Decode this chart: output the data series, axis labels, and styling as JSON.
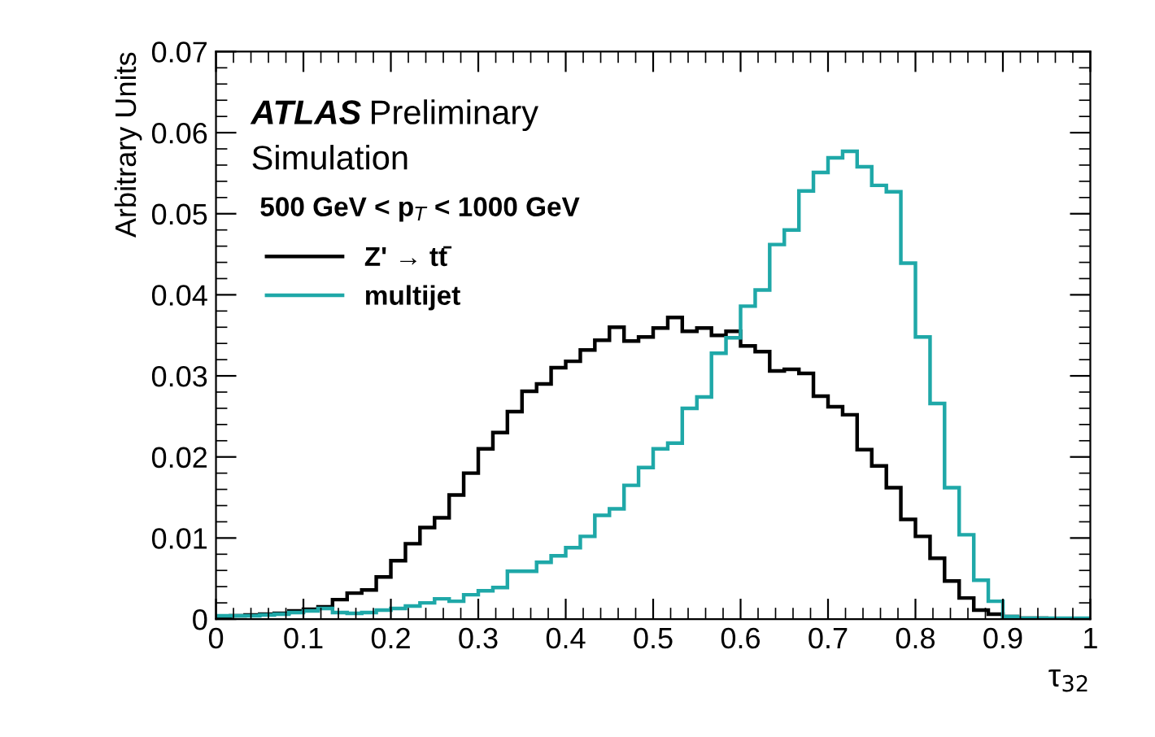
{
  "chart_data": {
    "type": "histogram",
    "xlabel": "τ$_{32}$",
    "ylabel": "Arbitrary Units",
    "annotations": [
      "ATLAS",
      "Preliminary",
      "Simulation",
      "500 GeV < p$_{T}$ < 1000 GeV"
    ],
    "bins": [
      0,
      0.0167,
      0.0333,
      0.05,
      0.0667,
      0.0833,
      0.1,
      0.1167,
      0.1333,
      0.15,
      0.1667,
      0.1833,
      0.2,
      0.2167,
      0.2333,
      0.25,
      0.2667,
      0.2833,
      0.3,
      0.3167,
      0.3333,
      0.35,
      0.3667,
      0.3833,
      0.4,
      0.4167,
      0.4333,
      0.45,
      0.4667,
      0.4833,
      0.5,
      0.5167,
      0.5333,
      0.55,
      0.5667,
      0.5833,
      0.6,
      0.6167,
      0.6333,
      0.65,
      0.6667,
      0.6833,
      0.7,
      0.7167,
      0.7333,
      0.75,
      0.7667,
      0.7833,
      0.8,
      0.8167,
      0.8333,
      0.85,
      0.8667,
      0.8833,
      0.9,
      0.9167,
      0.9333,
      0.95,
      0.9667,
      0.9833,
      1
    ],
    "series": [
      {
        "name": "Z' → tt̄",
        "color": "#000000",
        "values": [
          0.0003,
          0.0004,
          0.0005,
          0.0006,
          0.0007,
          0.001,
          0.0012,
          0.0015,
          0.0024,
          0.0032,
          0.0036,
          0.0052,
          0.0072,
          0.0093,
          0.0113,
          0.0125,
          0.0153,
          0.018,
          0.021,
          0.023,
          0.0256,
          0.0281,
          0.029,
          0.031,
          0.0318,
          0.0332,
          0.0344,
          0.036,
          0.0343,
          0.0348,
          0.0359,
          0.0372,
          0.0355,
          0.0359,
          0.035,
          0.0355,
          0.0337,
          0.033,
          0.0306,
          0.0308,
          0.0303,
          0.0275,
          0.0262,
          0.0252,
          0.0209,
          0.0189,
          0.0162,
          0.0123,
          0.0102,
          0.0075,
          0.0047,
          0.0026,
          0.0011,
          0.0006,
          0.0003,
          0.0001,
          0.0001,
          0,
          0,
          0
        ]
      },
      {
        "name": "multijet",
        "color": "#1fa8a8",
        "values": [
          0.0004,
          0.0004,
          0.0004,
          0.0005,
          0.0006,
          0.0008,
          0.001,
          0.0013,
          0.0008,
          0.0007,
          0.0008,
          0.0011,
          0.0013,
          0.0016,
          0.002,
          0.0025,
          0.0022,
          0.003,
          0.0035,
          0.0039,
          0.0059,
          0.0059,
          0.007,
          0.0078,
          0.0088,
          0.0102,
          0.0128,
          0.0136,
          0.0165,
          0.0187,
          0.021,
          0.0217,
          0.026,
          0.0274,
          0.0328,
          0.0347,
          0.0386,
          0.0406,
          0.0462,
          0.048,
          0.0528,
          0.0551,
          0.0569,
          0.0577,
          0.0558,
          0.0535,
          0.0527,
          0.0439,
          0.0348,
          0.0266,
          0.0162,
          0.0104,
          0.0048,
          0.0022,
          0.0003,
          0.0001,
          0.0001,
          0.0001,
          0.0001,
          0.0001
        ]
      }
    ],
    "xlim": [
      0,
      1
    ],
    "xticks": [
      0,
      0.1,
      0.2,
      0.3,
      0.4,
      0.5,
      0.6,
      0.7,
      0.8,
      0.9,
      1
    ],
    "ylim": [
      0,
      0.07
    ],
    "yticks": [
      0,
      0.01,
      0.02,
      0.03,
      0.04,
      0.05,
      0.06,
      0.07
    ],
    "legend": "top left",
    "grid": false
  }
}
